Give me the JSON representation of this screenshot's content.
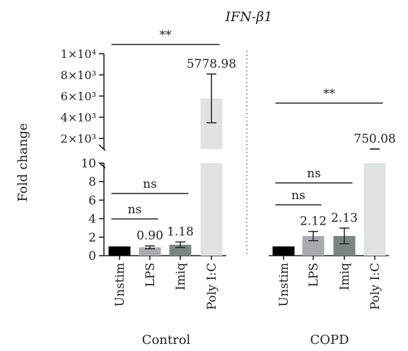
{
  "chart_data": {
    "type": "bar",
    "title": "IFN-β1",
    "ylabel": "Fold change",
    "axis": {
      "lower": {
        "ylim": [
          0,
          10
        ],
        "ticks": [
          "0",
          "2",
          "4",
          "6",
          "8",
          "10"
        ]
      },
      "upper": {
        "ylim": [
          1000,
          10000
        ],
        "ticks": [
          "2×10³",
          "4×10³",
          "6×10³",
          "8×10³",
          "1×10⁴"
        ]
      },
      "broken": true
    },
    "groups": [
      {
        "name": "Control",
        "categories": [
          "Unstim",
          "LPS",
          "Imiq",
          "Poly I:C"
        ],
        "values": [
          1,
          0.9,
          1.18,
          5778.98
        ],
        "errors": [
          0,
          0.15,
          0.3,
          2300
        ],
        "value_labels": [
          "",
          "0.90",
          "1.18",
          "5778.98"
        ],
        "colors": [
          "#000000",
          "#a7abb0",
          "#7b8581",
          "#dfe4e1"
        ],
        "significance": [
          {
            "from": "Unstim",
            "to": "Poly I:C",
            "label": "**"
          },
          {
            "from": "Unstim",
            "to": "Imiq",
            "label": "ns"
          },
          {
            "from": "Unstim",
            "to": "LPS",
            "label": "ns"
          }
        ]
      },
      {
        "name": "COPD",
        "categories": [
          "Unstim",
          "LPS",
          "Imiq",
          "Poly I:C"
        ],
        "values": [
          1,
          2.12,
          2.13,
          750.08
        ],
        "errors": [
          0,
          0.5,
          0.85,
          200
        ],
        "value_labels": [
          "",
          "2.12",
          "2.13",
          "750.08"
        ],
        "colors": [
          "#000000",
          "#a7abb0",
          "#7b8581",
          "#dfe4e1"
        ],
        "significance": [
          {
            "from": "Unstim",
            "to": "Poly I:C",
            "label": "**"
          },
          {
            "from": "Unstim",
            "to": "Imiq",
            "label": "ns"
          },
          {
            "from": "Unstim",
            "to": "LPS",
            "label": "ns"
          }
        ]
      }
    ],
    "grid": false,
    "legend": "none"
  }
}
